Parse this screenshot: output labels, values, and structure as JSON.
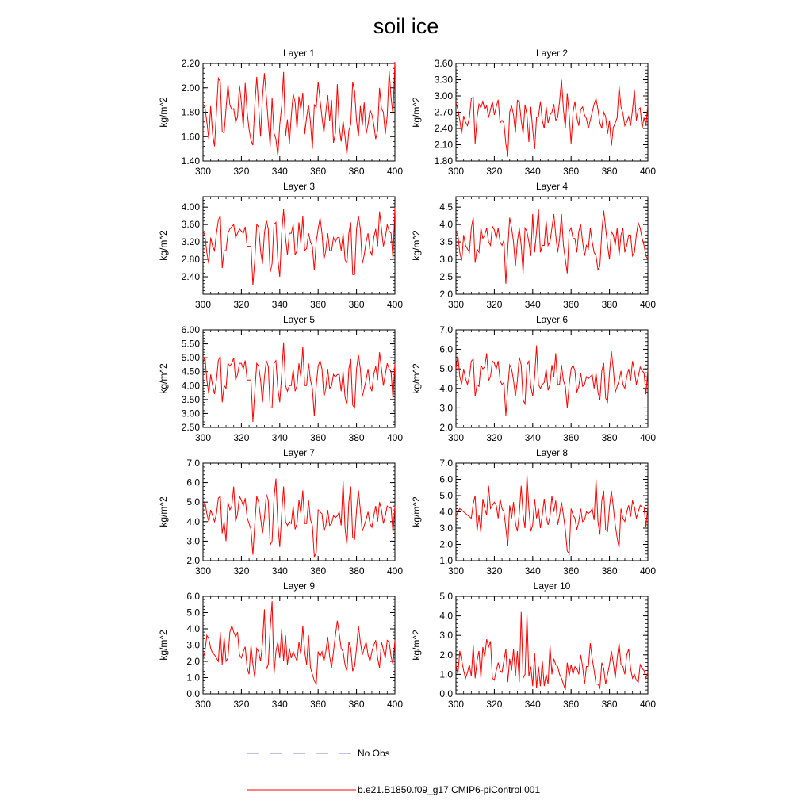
{
  "title": "soil ice",
  "legend": {
    "obs_label": "No Obs",
    "obs_color": "#8080d0",
    "model_label": "b.e21.B1850.f09_g17.CMIP6-piControl.001",
    "model_color": "#ff0000"
  },
  "chart_data": [
    {
      "type": "line",
      "title": "Layer 1",
      "xlabel": "",
      "ylabel": "kg/m^2",
      "xlim": [
        300,
        400
      ],
      "ylim": [
        1.4,
        2.2
      ],
      "xticks": [
        "300",
        "320",
        "340",
        "360",
        "380",
        "400"
      ],
      "yticks": [
        "1.40",
        "1.60",
        "1.80",
        "2.00",
        "2.20"
      ],
      "x_start": 300,
      "x_step": 1,
      "values": [
        1.87,
        1.84,
        1.72,
        1.58,
        1.85,
        1.62,
        1.52,
        1.8,
        2.08,
        2.05,
        1.64,
        1.63,
        1.83,
        2.03,
        1.86,
        1.82,
        1.83,
        1.72,
        1.76,
        2.02,
        1.88,
        1.67,
        2.04,
        1.8,
        1.66,
        1.57,
        1.53,
        1.86,
        2.09,
        1.85,
        1.6,
        1.93,
        2.12,
        1.93,
        1.72,
        1.52,
        1.92,
        1.63,
        1.58,
        1.44,
        1.7,
        1.85,
        2.13,
        1.6,
        1.74,
        1.54,
        1.77,
        1.95,
        1.88,
        1.66,
        1.93,
        1.82,
        1.96,
        1.62,
        1.76,
        1.86,
        1.72,
        1.5,
        1.86,
        1.84,
        2.05,
        1.9,
        1.76,
        1.63,
        1.8,
        1.94,
        1.73,
        1.9,
        1.55,
        1.63,
        2.03,
        1.68,
        1.56,
        1.73,
        1.6,
        1.45,
        1.65,
        1.7,
        2.05,
        1.97,
        1.73,
        1.6,
        1.85,
        1.69,
        1.88,
        1.62,
        1.7,
        1.82,
        1.78,
        1.7,
        1.58,
        1.65,
        2.0,
        1.83,
        1.8,
        1.62,
        1.77,
        2.14,
        1.92,
        1.78,
        2.22
      ]
    },
    {
      "type": "line",
      "title": "Layer 2",
      "xlabel": "",
      "ylabel": "kg/m^2",
      "xlim": [
        300,
        400
      ],
      "ylim": [
        1.8,
        3.6
      ],
      "xticks": [
        "300",
        "320",
        "340",
        "360",
        "380",
        "400"
      ],
      "yticks": [
        "1.80",
        "2.10",
        "2.40",
        "2.70",
        "3.00",
        "3.30",
        "3.60"
      ],
      "x_start": 300,
      "x_step": 1,
      "values": [
        2.88,
        2.75,
        2.55,
        2.3,
        2.63,
        2.52,
        2.45,
        2.6,
        2.95,
        2.98,
        2.12,
        2.6,
        2.85,
        2.78,
        2.9,
        2.75,
        2.82,
        2.6,
        2.75,
        2.9,
        2.65,
        2.8,
        2.93,
        2.5,
        2.55,
        2.5,
        2.12,
        1.88,
        2.7,
        2.82,
        2.65,
        2.32,
        2.92,
        2.9,
        2.55,
        2.3,
        2.84,
        2.65,
        2.15,
        2.8,
        2.38,
        2.02,
        2.6,
        2.62,
        2.9,
        2.55,
        2.4,
        2.8,
        2.5,
        2.65,
        2.7,
        2.85,
        2.55,
        2.6,
        2.9,
        3.3,
        2.75,
        2.4,
        3.05,
        2.65,
        2.12,
        2.7,
        2.9,
        2.6,
        2.45,
        2.75,
        2.8,
        2.65,
        2.58,
        2.4,
        2.55,
        2.7,
        2.85,
        2.95,
        2.75,
        2.5,
        2.4,
        2.7,
        2.62,
        2.3,
        2.55,
        2.08,
        2.42,
        2.5,
        2.6,
        3.18,
        2.8,
        2.68,
        2.45,
        2.52,
        2.62,
        2.45,
        2.75,
        3.1,
        2.55,
        2.75,
        2.78,
        2.4,
        2.6,
        2.45,
        2.85
      ]
    },
    {
      "type": "line",
      "title": "Layer 3",
      "xlabel": "",
      "ylabel": "kg/m^2",
      "xlim": [
        300,
        400
      ],
      "ylim": [
        2.0,
        4.24
      ],
      "xticks": [
        "300",
        "320",
        "340",
        "360",
        "380",
        "400"
      ],
      "yticks": [
        "2.40",
        "2.80",
        "3.20",
        "3.60",
        "4.00"
      ],
      "x_start": 300,
      "x_step": 1,
      "values": [
        3.45,
        3.35,
        2.95,
        2.7,
        3.3,
        3.1,
        3.0,
        3.4,
        3.7,
        3.8,
        2.6,
        3.0,
        3.0,
        3.4,
        3.5,
        3.55,
        3.6,
        3.3,
        3.4,
        3.5,
        3.45,
        3.4,
        3.55,
        3.1,
        3.1,
        3.1,
        2.2,
        2.8,
        3.6,
        3.55,
        3.0,
        2.7,
        3.4,
        3.7,
        3.5,
        2.5,
        2.7,
        3.6,
        3.65,
        2.8,
        2.4,
        3.4,
        3.95,
        3.3,
        2.9,
        3.4,
        3.4,
        3.6,
        2.9,
        3.0,
        3.65,
        3.15,
        3.8,
        3.0,
        3.05,
        3.4,
        3.2,
        3.1,
        2.55,
        3.2,
        3.5,
        3.75,
        3.4,
        2.8,
        3.0,
        3.4,
        3.0,
        3.0,
        3.3,
        3.2,
        3.3,
        3.3,
        3.0,
        3.4,
        2.8,
        2.7,
        3.4,
        3.65,
        2.45,
        2.45,
        3.5,
        3.8,
        3.5,
        2.7,
        2.9,
        3.2,
        3.4,
        3.0,
        2.9,
        3.3,
        3.5,
        3.1,
        3.9,
        3.5,
        3.1,
        3.3,
        3.6,
        3.45,
        3.4,
        2.8,
        4.0
      ]
    },
    {
      "type": "line",
      "title": "Layer 4",
      "xlabel": "",
      "ylabel": "kg/m^2",
      "xlim": [
        300,
        400
      ],
      "ylim": [
        2.0,
        4.8
      ],
      "xticks": [
        "300",
        "320",
        "340",
        "360",
        "380",
        "400"
      ],
      "yticks": [
        "2.0",
        "2.5",
        "3.0",
        "3.5",
        "4.0",
        "4.5"
      ],
      "x_start": 300,
      "x_step": 1,
      "values": [
        3.8,
        3.7,
        3.2,
        2.95,
        3.7,
        3.4,
        3.3,
        3.2,
        3.9,
        4.2,
        2.9,
        3.3,
        3.2,
        3.9,
        3.6,
        3.7,
        3.9,
        3.5,
        3.4,
        3.95,
        3.85,
        3.6,
        3.9,
        3.5,
        3.4,
        3.55,
        2.3,
        3.3,
        4.2,
        3.9,
        3.5,
        2.8,
        3.5,
        3.9,
        3.4,
        2.6,
        3.9,
        3.8,
        3.5,
        3.1,
        4.3,
        3.2,
        3.8,
        4.45,
        3.2,
        3.4,
        3.4,
        4.1,
        3.4,
        3.5,
        3.9,
        4.3,
        3.7,
        3.2,
        3.6,
        4.3,
        3.4,
        3.0,
        2.6,
        3.8,
        3.9,
        3.6,
        3.6,
        3.2,
        3.8,
        4.0,
        3.5,
        3.1,
        3.4,
        3.3,
        3.9,
        3.5,
        3.2,
        3.1,
        2.7,
        2.8,
        3.8,
        4.4,
        3.9,
        3.4,
        3.0,
        3.8,
        3.7,
        3.4,
        3.9,
        3.1,
        3.7,
        3.9,
        3.2,
        3.4,
        3.7,
        3.7,
        3.1,
        3.2,
        3.7,
        4.05,
        3.9,
        3.6,
        3.4,
        3.1,
        3.0
      ]
    },
    {
      "type": "line",
      "title": "Layer 5",
      "xlabel": "",
      "ylabel": "kg/m^2",
      "xlim": [
        300,
        400
      ],
      "ylim": [
        2.5,
        6.0
      ],
      "xticks": [
        "300",
        "320",
        "340",
        "360",
        "380",
        "400"
      ],
      "yticks": [
        "2.50",
        "3.00",
        "3.50",
        "4.00",
        "4.50",
        "5.00",
        "5.50",
        "6.00"
      ],
      "x_start": 300,
      "x_step": 1,
      "values": [
        4.8,
        5.05,
        4.2,
        3.7,
        4.4,
        4.0,
        3.7,
        4.2,
        4.9,
        5.05,
        3.4,
        4.0,
        3.9,
        4.8,
        4.7,
        4.8,
        5.0,
        4.2,
        4.4,
        4.8,
        4.8,
        4.6,
        4.9,
        4.2,
        4.2,
        4.2,
        2.7,
        3.8,
        4.8,
        4.7,
        4.2,
        3.4,
        4.3,
        4.9,
        4.7,
        3.2,
        3.2,
        4.8,
        4.9,
        3.9,
        3.4,
        4.4,
        5.55,
        4.0,
        3.8,
        4.0,
        4.0,
        4.6,
        3.8,
        4.0,
        4.8,
        4.3,
        5.4,
        4.0,
        4.0,
        4.8,
        4.2,
        3.9,
        2.9,
        4.0,
        4.7,
        4.9,
        4.6,
        3.6,
        3.9,
        4.6,
        3.9,
        4.0,
        4.4,
        4.3,
        4.4,
        4.4,
        3.8,
        4.5,
        3.6,
        3.3,
        4.6,
        4.95,
        3.3,
        3.2,
        4.6,
        5.1,
        4.6,
        3.6,
        3.9,
        4.2,
        4.6,
        4.0,
        3.8,
        4.4,
        4.7,
        4.2,
        5.2,
        4.6,
        4.0,
        4.4,
        4.8,
        4.6,
        4.5,
        3.5,
        4.8
      ]
    },
    {
      "type": "line",
      "title": "Layer 6",
      "xlabel": "",
      "ylabel": "kg/m^2",
      "xlim": [
        300,
        400
      ],
      "ylim": [
        2.0,
        7.0
      ],
      "xticks": [
        "300",
        "320",
        "340",
        "360",
        "380",
        "400"
      ],
      "yticks": [
        "2.0",
        "3.0",
        "4.0",
        "5.0",
        "6.0",
        "7.0"
      ],
      "x_start": 300,
      "x_step": 1,
      "values": [
        5.0,
        5.7,
        4.6,
        4.2,
        5.0,
        4.5,
        4.2,
        4.6,
        5.4,
        5.5,
        3.6,
        4.2,
        4.1,
        5.2,
        5.0,
        5.1,
        5.8,
        4.4,
        4.6,
        5.4,
        5.3,
        5.0,
        5.4,
        4.4,
        4.2,
        4.3,
        2.6,
        4.0,
        5.2,
        5.0,
        4.4,
        3.6,
        4.4,
        5.6,
        5.2,
        3.4,
        3.2,
        5.2,
        5.4,
        4.1,
        3.6,
        4.6,
        6.2,
        4.2,
        4.0,
        4.2,
        4.3,
        5.0,
        3.9,
        4.2,
        5.2,
        4.6,
        5.8,
        4.2,
        4.2,
        5.2,
        4.4,
        4.1,
        3.0,
        4.2,
        5.0,
        5.2,
        4.9,
        3.8,
        4.1,
        4.8,
        4.1,
        4.2,
        4.6,
        4.5,
        4.6,
        4.7,
        4.0,
        4.8,
        3.8,
        3.4,
        4.9,
        5.3,
        3.5,
        3.3,
        4.8,
        5.9,
        5.0,
        3.8,
        4.1,
        4.4,
        4.9,
        4.2,
        4.0,
        4.6,
        5.0,
        4.4,
        5.4,
        4.9,
        4.2,
        4.6,
        5.1,
        4.9,
        4.8,
        3.7,
        5.0
      ]
    },
    {
      "type": "line",
      "title": "Layer 7",
      "xlabel": "",
      "ylabel": "kg/m^2",
      "xlim": [
        300,
        400
      ],
      "ylim": [
        2.0,
        7.0
      ],
      "xticks": [
        "300",
        "320",
        "340",
        "360",
        "380",
        "400"
      ],
      "yticks": [
        "2.0",
        "3.0",
        "4.0",
        "5.0",
        "6.0",
        "7.0"
      ],
      "x_start": 300,
      "x_step": 1,
      "values": [
        4.7,
        5.0,
        4.4,
        4.0,
        4.6,
        4.3,
        4.0,
        4.4,
        5.2,
        5.3,
        3.4,
        4.0,
        3.0,
        5.0,
        4.6,
        4.8,
        5.8,
        4.0,
        4.4,
        5.3,
        5.1,
        4.8,
        5.2,
        4.2,
        3.9,
        3.6,
        2.3,
        3.9,
        5.3,
        5.0,
        4.2,
        3.4,
        4.2,
        5.4,
        5.1,
        2.8,
        3.0,
        5.2,
        6.2,
        3.9,
        2.7,
        4.4,
        5.8,
        4.0,
        3.8,
        4.0,
        3.9,
        4.8,
        3.6,
        3.9,
        5.1,
        4.4,
        5.6,
        3.9,
        3.9,
        5.1,
        4.1,
        3.8,
        2.2,
        2.4,
        4.6,
        4.5,
        4.4,
        3.5,
        3.8,
        4.6,
        3.8,
        3.9,
        4.3,
        4.2,
        4.3,
        4.5,
        3.8,
        6.1,
        3.7,
        2.8,
        5.0,
        5.8,
        3.2,
        3.1,
        4.6,
        5.6,
        4.6,
        3.5,
        3.8,
        4.1,
        4.5,
        3.9,
        3.7,
        4.3,
        4.8,
        4.0,
        5.0,
        4.6,
        3.9,
        4.3,
        4.8,
        4.7,
        4.7,
        3.4,
        4.8
      ]
    },
    {
      "type": "line",
      "title": "Layer 8",
      "xlabel": "",
      "ylabel": "kg/m^2",
      "xlim": [
        300,
        400
      ],
      "ylim": [
        1.0,
        7.0
      ],
      "xticks": [
        "300",
        "320",
        "340",
        "360",
        "380",
        "400"
      ],
      "yticks": [
        "1.0",
        "2.0",
        "3.0",
        "4.0",
        "5.0",
        "6.0",
        "7.0"
      ],
      "x_start": 300,
      "x_step": 1,
      "values": [
        3.7,
        4.0,
        4.2,
        4.1,
        4.0,
        3.9,
        3.8,
        3.7,
        3.6,
        4.5,
        5.0,
        2.8,
        3.8,
        2.7,
        4.8,
        4.2,
        3.8,
        5.6,
        4.2,
        4.4,
        4.6,
        4.4,
        3.6,
        4.8,
        4.2,
        4.0,
        3.0,
        1.9,
        4.4,
        3.6,
        4.6,
        3.3,
        2.8,
        3.9,
        5.6,
        3.8,
        3.0,
        6.3,
        4.2,
        2.8,
        3.2,
        4.8,
        3.6,
        4.2,
        3.0,
        3.8,
        4.8,
        3.7,
        3.2,
        3.7,
        5.0,
        4.0,
        4.7,
        3.2,
        3.8,
        4.6,
        3.8,
        2.9,
        1.6,
        1.4,
        4.2,
        3.8,
        3.6,
        2.9,
        3.4,
        4.2,
        3.4,
        3.5,
        4.0,
        3.9,
        4.0,
        4.2,
        3.5,
        6.0,
        3.4,
        2.6,
        4.7,
        5.3,
        2.9,
        2.8,
        4.3,
        5.3,
        4.3,
        3.2,
        2.4,
        1.8,
        4.2,
        3.6,
        3.4,
        4.0,
        4.4,
        3.7,
        4.7,
        4.3,
        3.6,
        4.0,
        4.4,
        4.3,
        4.3,
        3.1,
        4.4
      ]
    },
    {
      "type": "line",
      "title": "Layer 9",
      "xlabel": "",
      "ylabel": "kg/m^2",
      "xlim": [
        300,
        400
      ],
      "ylim": [
        0.0,
        6.0
      ],
      "xticks": [
        "300",
        "320",
        "340",
        "360",
        "380",
        "400"
      ],
      "yticks": [
        "0.0",
        "1.0",
        "2.0",
        "3.0",
        "4.0",
        "5.0",
        "6.0"
      ],
      "x_start": 300,
      "x_step": 1,
      "values": [
        2.2,
        2.6,
        3.6,
        3.4,
        2.8,
        2.5,
        2.4,
        2.2,
        2.0,
        3.8,
        1.8,
        3.5,
        2.0,
        2.2,
        3.8,
        4.2,
        3.8,
        3.5,
        3.8,
        2.4,
        2.2,
        2.6,
        2.9,
        1.6,
        1.2,
        3.0,
        1.8,
        1.0,
        2.8,
        2.6,
        2.0,
        3.1,
        5.2,
        1.5,
        1.8,
        4.0,
        5.7,
        1.2,
        2.6,
        3.2,
        2.2,
        4.0,
        2.0,
        3.6,
        1.8,
        2.8,
        2.2,
        2.6,
        2.3,
        2.0,
        3.2,
        2.4,
        4.2,
        2.6,
        1.8,
        3.6,
        1.6,
        1.2,
        0.8,
        0.6,
        2.6,
        2.3,
        2.6,
        2.0,
        2.6,
        3.5,
        2.3,
        1.6,
        2.6,
        3.6,
        4.5,
        3.7,
        2.8,
        2.6,
        1.8,
        1.4,
        3.2,
        2.8,
        1.4,
        1.7,
        2.8,
        4.2,
        3.2,
        2.4,
        2.8,
        3.2,
        2.4,
        2.0,
        2.6,
        3.0,
        3.3,
        2.2,
        1.6,
        3.2,
        2.7,
        2.2,
        3.3,
        3.2,
        2.3,
        1.8,
        3.3
      ]
    },
    {
      "type": "line",
      "title": "Layer 10",
      "xlabel": "",
      "ylabel": "kg/m^2",
      "xlim": [
        300,
        400
      ],
      "ylim": [
        0.0,
        5.0
      ],
      "xticks": [
        "300",
        "320",
        "340",
        "360",
        "380",
        "400"
      ],
      "yticks": [
        "0.0",
        "1.0",
        "2.0",
        "3.0",
        "4.0",
        "5.0"
      ],
      "x_start": 300,
      "x_step": 1,
      "values": [
        1.5,
        1.0,
        2.2,
        1.7,
        1.2,
        0.8,
        1.1,
        1.5,
        0.9,
        2.5,
        0.8,
        1.7,
        2.2,
        0.8,
        2.4,
        1.9,
        2.8,
        2.4,
        2.7,
        0.8,
        0.7,
        1.2,
        1.6,
        1.2,
        1.1,
        1.7,
        2.3,
        0.6,
        1.8,
        1.2,
        2.3,
        0.9,
        2.2,
        0.6,
        4.2,
        0.8,
        1.0,
        4.1,
        0.9,
        1.4,
        0.4,
        2.1,
        0.3,
        1.4,
        0.4,
        1.7,
        0.4,
        1.0,
        0.5,
        2.5,
        1.0,
        1.8,
        1.5,
        1.4,
        1.0,
        0.8,
        0.5,
        0.2,
        1.6,
        0.9,
        1.5,
        1.0,
        1.4,
        1.3,
        1.0,
        2.0,
        1.4,
        0.5,
        1.4,
        1.4,
        2.6,
        1.8,
        1.2,
        0.5,
        0.5,
        0.3,
        1.6,
        1.3,
        0.5,
        1.0,
        1.5,
        2.2,
        1.6,
        0.8,
        1.8,
        2.6,
        1.5,
        1.4,
        1.0,
        2.0,
        2.3,
        1.3,
        0.8,
        1.0,
        0.7,
        0.6,
        1.5,
        1.3,
        1.2,
        0.8,
        1.1
      ]
    }
  ]
}
